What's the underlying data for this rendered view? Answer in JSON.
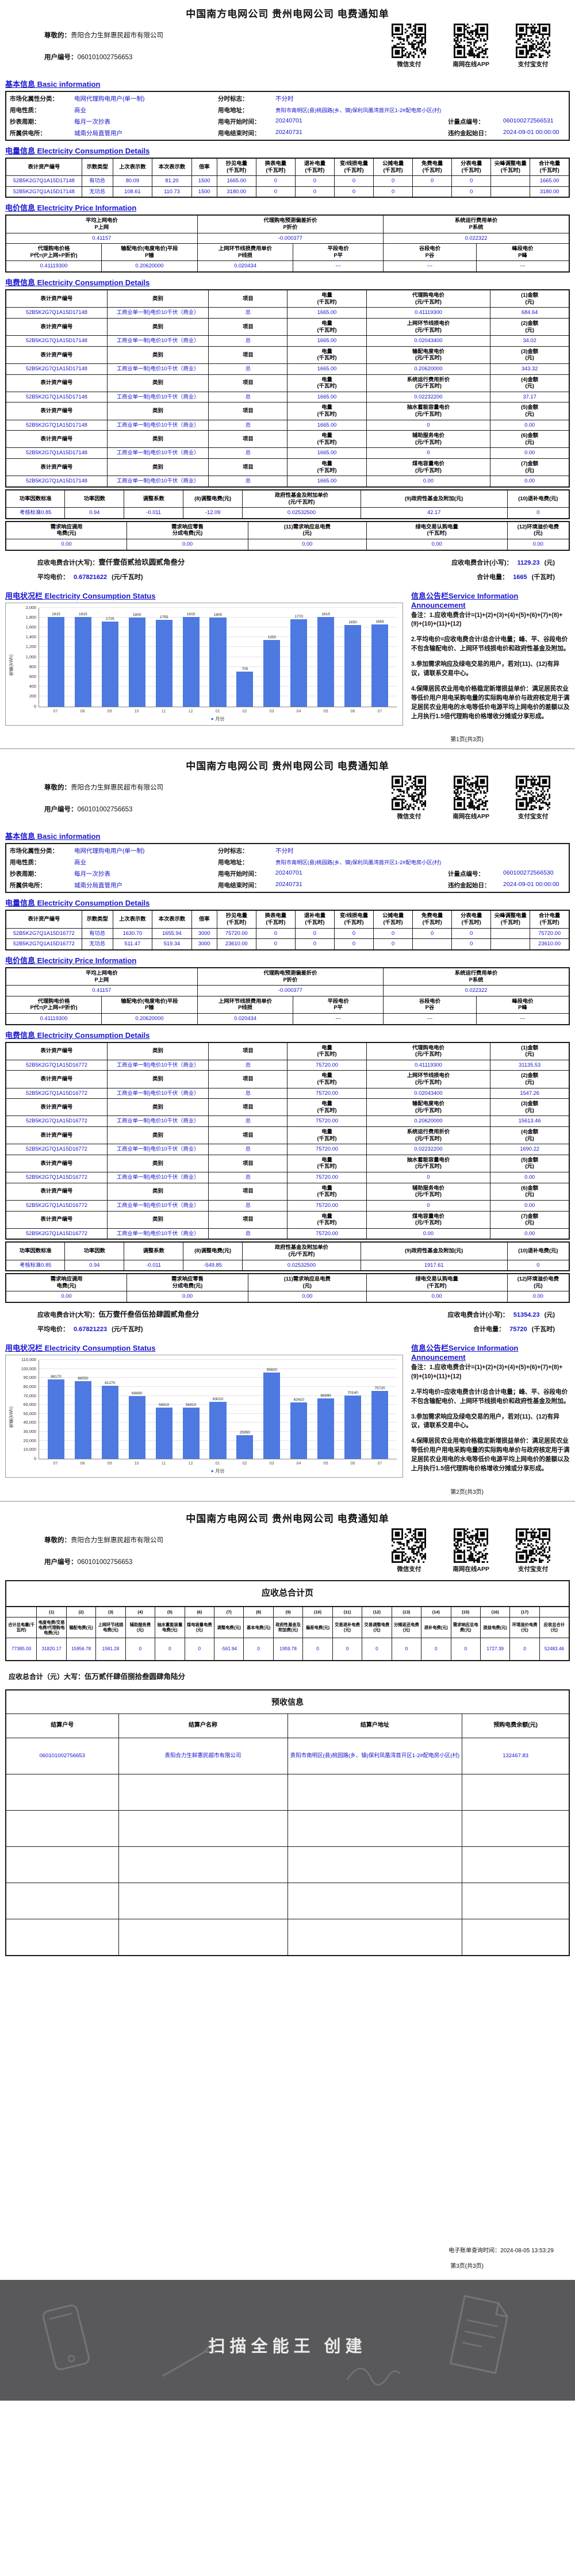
{
  "title": "中国南方电网公司 贵州电网公司 电费通知单",
  "watermark_text": "扫描全能王 创建",
  "payment_methods": [
    "微信支付",
    "南网在线APP",
    "支付宝支付"
  ],
  "customer_name": "贵阳合力生鲜惠民超市有限公司",
  "user_no": "060101002756653",
  "labels": {
    "greeting": "尊敬的：",
    "user_no": "用户编号：",
    "market": "市场化属性分类：",
    "tou": "分时标志：",
    "usage": "用电性质：",
    "addr": "用电地址：",
    "cycle": "抄表周期：",
    "start": "用电开始时间：",
    "meter_point": "计量点编号：",
    "office": "所属供电所：",
    "end": "用电结束时间：",
    "penalty": "违约金起始日：",
    "total_words": "应收电费合计(大写)：",
    "total_small": "应收电费合计(小写)：",
    "avg_price": "平均电价：",
    "total_qty": "合计电量：",
    "unit_yuan": "(元)",
    "unit_yuan_kwh": "(元/千瓦时)",
    "unit_kwh": "(千瓦时)"
  },
  "sections": {
    "basic": "基本信息 Basic information",
    "consumption": "电量信息 Electricity Consumption Details",
    "price": "电价信息 Electricity Price Information",
    "fee": "电费信息 Electricity Consumption Details",
    "status": "用电状况栏 Electricity Consumption Status",
    "announcement": "信息公告栏Service Information Announcement"
  },
  "basic": {
    "market": "电网代理购电用户(单一制)",
    "tou": "不分时",
    "usage": "商业",
    "addr": "贵阳市南明区(县)桃园路(乡、镇)保利凤凰湾首开区1-2#配电房小区(村)",
    "cycle": "每月一次抄表",
    "start": "20240701",
    "office": "城南分局直管用户",
    "end": "20240731",
    "penalty": "2024-09-01 00:00:00"
  },
  "meter_headers": [
    "表计资产编号",
    "示数类型",
    "上次表示数",
    "本次表示数",
    "倍率",
    "抄见电量\n(千瓦时)",
    "换表电量\n(千瓦时)",
    "退补电量\n(千瓦时)",
    "变/线损电量\n(千瓦时)",
    "公摊电量\n(千瓦时)",
    "免费电量\n(千瓦时)",
    "分表电量\n(千瓦时)",
    "尖峰调整电量\n(千瓦时)",
    "合计电量\n(千瓦时)"
  ],
  "price_head1": [
    "平均上网电价\nP上网",
    "代理购电预测偏差折价\nP折价",
    "系统运行费用单价\nP系统"
  ],
  "price_head2": [
    "代理购电价格\nP代=(P上网+P折价)",
    "输配电价(电度电价)平段\nP输",
    "上网环节线损费用单价\nP线损",
    "平段电价\nP平",
    "谷段电价\nP谷",
    "峰段电价\nP峰"
  ],
  "price_vals1": [
    "0.41157",
    "-0.000377",
    "0.022322"
  ],
  "price_vals2": [
    "0.41119300",
    "0.20620000",
    "0.020434",
    "---",
    "---",
    "---"
  ],
  "fee_head_common": [
    "表计资产编号",
    "类别",
    "项目",
    "电量\n(千瓦时)"
  ],
  "fee_price_labels": [
    "代理购电电价\n(元/千瓦时)",
    "上网环节线损电价\n(元/千瓦时)",
    "输配电度电价\n(元/千瓦时)",
    "系统运行费用折价\n(元/千瓦时)",
    "抽水蓄能容量电价\n(元/千瓦时)",
    "辅助服务电价\n(元/千瓦时)",
    "煤电容量电价\n(元/千瓦时)"
  ],
  "fee_amount_labels": [
    "(1)金额\n(元)",
    "(2)金额\n(元)",
    "(3)金额\n(元)",
    "(4)金额\n(元)",
    "(5)金额\n(元)",
    "(6)金额\n(元)",
    "(7)金额\n(元)"
  ],
  "fee_prices": [
    "0.41119300",
    "0.02043400",
    "0.20620000",
    "0.02232200",
    "0",
    "0",
    "0.00"
  ],
  "factor_heads": [
    "功率因数标准",
    "功率因数",
    "调整系数",
    "(8)调整电费(元)",
    "政府性基金及附加单价\n(元/千瓦时)",
    "(9)政府性基金及附加(元)",
    "(10)退补电费(元)"
  ],
  "demand_heads": [
    "需求响应调用\n电费(元)",
    "需求响应零售\n分成电费(元)",
    "(11)需求响应总电费\n(元)",
    "绿电交易认购电量\n(千瓦时)",
    "(12)环境溢价电费\n(元)"
  ],
  "announcement_items": [
    "备注：1.应收电费合计=(1)+(2)+(3)+(4)+(5)+(6)+(7)+(8)+(9)+(10)+(11)+(12)",
    "2.平均电价=应收电费合计/总合计电量；峰、平、谷段电价不包含输配电价、上网环节线损电价和政府性基金及附加。",
    "3.参加需求响应及绿电交易的用户，若对(11)、(12)有异议，请联系交易中心。",
    "4.保障居民农业用电价格稳定新增损益单价：满足居民农业等低价用户用电采购电量的实际购电单价与政府核定用于满足居民农业用电的水电等低价电源平均上网电价的差额以及上月执行1.5倍代理购电价格增收分摊或分享形成。"
  ],
  "chart_ylabel": "电量(kWh)",
  "chart_legend": "月份",
  "pages": [
    {
      "footer": "第1页(共3页)",
      "meter_point": "060100272566531",
      "meter_rows": [
        [
          "52B5K2G7Q1A15D17148",
          "有功总",
          "80.09",
          "81.20",
          "1500",
          "1665.00",
          "0",
          "0",
          "0",
          "0",
          "0",
          "0",
          "",
          "1665.00"
        ],
        [
          "52B5K2G7Q1A15D17148",
          "无功总",
          "108.61",
          "110.73",
          "1500",
          "3180.00",
          "0",
          "0",
          "0",
          "0",
          "",
          "0",
          "",
          "3180.00"
        ]
      ],
      "fee_asset": "52B5K2G7Q1A15D17148",
      "fee_category": "工商业单一制)电价10千伏（商业）",
      "fee_item": "总",
      "fee_qty": "1665.00",
      "fee_amounts": [
        "684.64",
        "34.02",
        "343.32",
        "37.17",
        "0.00",
        "0.00",
        "0.00"
      ],
      "factor_vals": [
        "考核标准0.85",
        "0.94",
        "-0.011",
        "-12.09",
        "0.02532500",
        "42.17",
        "0"
      ],
      "demand_vals": [
        "0.00",
        "0.00",
        "0.00",
        "0.00",
        "0.00"
      ],
      "total_words": "壹仟壹佰贰拾玖圆贰角叁分",
      "total_amount": "1129.23",
      "avg_price": "0.67821622",
      "total_qty": "1665",
      "chart": {
        "type": "bar",
        "categories": [
          "07",
          "08",
          "09",
          "10",
          "11",
          "12",
          "01",
          "02",
          "03",
          "04",
          "05",
          "06",
          "07"
        ],
        "values": [
          1815,
          1815,
          1725,
          1800,
          1755,
          1815,
          1800,
          705,
          1350,
          1770,
          1815,
          1650,
          1665
        ],
        "ymax": 2000,
        "ystep": 200
      }
    },
    {
      "footer": "第2页(共3页)",
      "meter_point": "060100272566530",
      "meter_rows": [
        [
          "52B5K2G7Q1A15D16772",
          "有功总",
          "1630.70",
          "1655.94",
          "3000",
          "75720.00",
          "0",
          "0",
          "0",
          "0",
          "0",
          "0",
          "",
          "75720.00"
        ],
        [
          "52B5K2G7Q1A15D16772",
          "无功总",
          "511.47",
          "519.34",
          "3000",
          "23610.00",
          "0",
          "0",
          "0",
          "0",
          "",
          "0",
          "",
          "23610.00"
        ]
      ],
      "fee_asset": "52B5K2G7Q1A15D16772",
      "fee_category": "工商业单一制)电价10千伏（商业）",
      "fee_item": "总",
      "fee_qty": "75720.00",
      "fee_amounts": [
        "31135.53",
        "1547.26",
        "15613.46",
        "1690.22",
        "0.00",
        "0.00",
        "0.00"
      ],
      "factor_vals": [
        "考核标准0.85",
        "0.94",
        "-0.011",
        "-549.85",
        "0.02532500",
        "1917.61",
        "0"
      ],
      "demand_vals": [
        "0.00",
        "0.00",
        "0.00",
        "0.00",
        "0.00"
      ],
      "total_words": "伍万壹仟叁佰伍拾肆圆贰角叁分",
      "total_amount": "51354.23",
      "avg_price": "0.67821223",
      "total_qty": "75720",
      "chart": {
        "type": "bar",
        "categories": [
          "07",
          "08",
          "09",
          "10",
          "11",
          "12",
          "01",
          "02",
          "03",
          "04",
          "05",
          "06",
          "07"
        ],
        "values": [
          88170,
          86550,
          81270,
          69690,
          56910,
          56910,
          63010,
          25950,
          95820,
          62410,
          66990,
          70140,
          75720
        ],
        "ymax": 110000,
        "ystep": 10000
      }
    },
    {
      "footer": "第3页(共3页)",
      "summary_title": "应收总合计页",
      "summary_nums": [
        "",
        "(1)",
        "(2)",
        "(3)",
        "(4)",
        "(5)",
        "(6)",
        "(7)",
        "(8)",
        "(9)",
        "(10)",
        "(11)",
        "(12)",
        "(13)",
        "(14)",
        "(15)",
        "(16)",
        "(17)",
        ""
      ],
      "summary_labels": [
        "合计总电量(千瓦时)",
        "电度电费/交易电费/代理购电电费(元)",
        "输配电费(元)",
        "上网环节线损电费(元)",
        "辅助服务费(元)",
        "抽水蓄能容量电费(元)",
        "煤电容量电费(元)",
        "调整电费(元)",
        "基本电费(元)",
        "政府性基金及附加费(元)",
        "偏差电费(元)",
        "交易退补电费(元)",
        "交易调整电费(元)",
        "分摊返还电费(元)",
        "退补电费(元)",
        "需求响应总电费(元)",
        "损益电费(元)",
        "环境溢价电费(元)",
        "应收总合计(元)"
      ],
      "summary_values": [
        "77385.00",
        "31820.17",
        "15956.78",
        "1581.28",
        "0",
        "0",
        "0",
        "-561.94",
        "0",
        "1959.78",
        "0",
        "0",
        "0",
        "0",
        "0",
        "0",
        "1727.39",
        "0",
        "52483.46"
      ],
      "grand_label": "应收总合计（元）大写：",
      "grand_words": "伍万贰仟肆佰捌拾叁圆肆角陆分",
      "prepaid_title": "预收信息",
      "prepaid_headers": [
        "结算户号",
        "结算户名称",
        "结算户地址",
        "预购电费余额(元)"
      ],
      "prepaid_row": [
        "060101002756653",
        "贵阳合力生鲜惠民超市有限公司",
        "贵阳市南明区(县)桃园路(乡、镇)保利凤凰湾首开区1-2#配电房小区(村)",
        "132467.83"
      ],
      "prepaid_empty_rows": 5,
      "query_time": "电子账单查询时间：2024-08-05 13:53:29"
    }
  ]
}
